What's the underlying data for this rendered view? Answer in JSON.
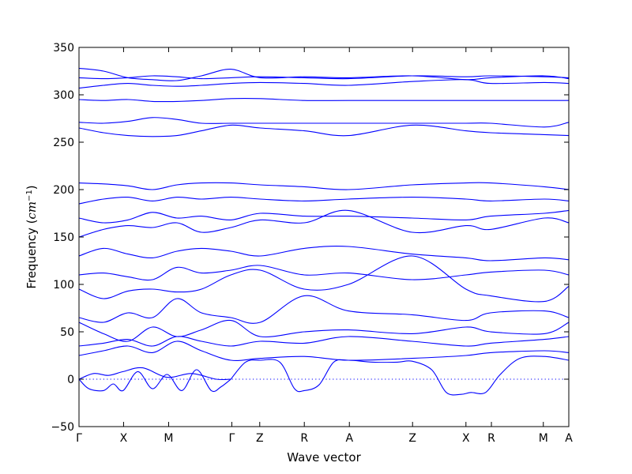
{
  "chart_data": {
    "type": "line",
    "title": "",
    "xlabel": "Wave vector",
    "ylabel_prefix": "Frequency (",
    "ylabel_unit": "cm",
    "ylabel_exp": "−1",
    "ylabel_suffix": ")",
    "ylim": [
      -50,
      350
    ],
    "yticks": [
      -50,
      0,
      50,
      100,
      150,
      200,
      250,
      300,
      350
    ],
    "ytick_labels": [
      "−50",
      "0",
      "50",
      "100",
      "150",
      "200",
      "250",
      "300",
      "350"
    ],
    "xlim": [
      0,
      1
    ],
    "high_symmetry_points": [
      {
        "label": "Γ",
        "x": 0.0
      },
      {
        "label": "X",
        "x": 0.091
      },
      {
        "label": "M",
        "x": 0.183
      },
      {
        "label": "Γ",
        "x": 0.312
      },
      {
        "label": "Z",
        "x": 0.369
      },
      {
        "label": "R",
        "x": 0.46
      },
      {
        "label": "A",
        "x": 0.552
      },
      {
        "label": "Z",
        "x": 0.681
      },
      {
        "label": "X",
        "x": 0.79
      },
      {
        "label": "R",
        "x": 0.842
      },
      {
        "label": "M",
        "x": 0.948
      },
      {
        "label": "A",
        "x": 1.0
      }
    ],
    "grid": false,
    "legend": "none",
    "line_color": "#0000ff",
    "zero_line_style": "dotted",
    "series": [
      {
        "x": [
          0,
          0.02,
          0.05,
          0.07,
          0.09,
          0.12,
          0.15,
          0.18,
          0.21,
          0.24,
          0.27,
          0.29,
          0.31
        ],
        "y": [
          0,
          -10,
          -12,
          -5,
          -12,
          8,
          -10,
          5,
          -12,
          10,
          -12,
          -8,
          0
        ]
      },
      {
        "x": [
          0,
          0.03,
          0.06,
          0.09,
          0.13,
          0.18,
          0.23,
          0.28,
          0.31
        ],
        "y": [
          0,
          6,
          4,
          8,
          12,
          2,
          6,
          0,
          0
        ]
      },
      {
        "x": [
          0.31,
          0.34,
          0.37,
          0.41,
          0.44,
          0.46,
          0.49,
          0.52,
          0.55,
          0.6,
          0.65,
          0.68,
          0.72,
          0.75,
          0.78,
          0.8,
          0.83,
          0.86,
          0.9,
          0.95,
          1.0
        ],
        "y": [
          0,
          18,
          20,
          18,
          -10,
          -12,
          -6,
          18,
          20,
          18,
          18,
          19,
          10,
          -14,
          -16,
          -14,
          -14,
          5,
          22,
          24,
          20
        ]
      },
      {
        "x": [
          0,
          0.05,
          0.1,
          0.15,
          0.2,
          0.25,
          0.31,
          0.37,
          0.46,
          0.55,
          0.68,
          0.79,
          0.84,
          0.95,
          1.0
        ],
        "y": [
          25,
          30,
          35,
          28,
          40,
          30,
          20,
          22,
          24,
          20,
          22,
          25,
          28,
          30,
          28
        ]
      },
      {
        "x": [
          0,
          0.05,
          0.1,
          0.15,
          0.2,
          0.25,
          0.31,
          0.37,
          0.46,
          0.55,
          0.68,
          0.79,
          0.84,
          0.95,
          1.0
        ],
        "y": [
          35,
          38,
          42,
          35,
          45,
          40,
          35,
          40,
          38,
          45,
          40,
          35,
          38,
          42,
          45
        ]
      },
      {
        "x": [
          0,
          0.05,
          0.1,
          0.15,
          0.2,
          0.25,
          0.31,
          0.37,
          0.46,
          0.55,
          0.68,
          0.79,
          0.84,
          0.95,
          1.0
        ],
        "y": [
          60,
          48,
          40,
          55,
          45,
          52,
          62,
          45,
          50,
          52,
          48,
          55,
          50,
          48,
          60
        ]
      },
      {
        "x": [
          0,
          0.05,
          0.1,
          0.15,
          0.2,
          0.25,
          0.31,
          0.37,
          0.46,
          0.55,
          0.68,
          0.79,
          0.84,
          0.95,
          1.0
        ],
        "y": [
          65,
          60,
          70,
          65,
          85,
          70,
          65,
          60,
          88,
          72,
          68,
          62,
          70,
          72,
          65
        ]
      },
      {
        "x": [
          0,
          0.05,
          0.1,
          0.15,
          0.2,
          0.25,
          0.31,
          0.37,
          0.46,
          0.55,
          0.68,
          0.79,
          0.84,
          0.95,
          1.0
        ],
        "y": [
          95,
          85,
          93,
          95,
          92,
          95,
          110,
          115,
          95,
          100,
          130,
          95,
          88,
          82,
          98
        ]
      },
      {
        "x": [
          0,
          0.05,
          0.1,
          0.15,
          0.2,
          0.25,
          0.31,
          0.37,
          0.46,
          0.55,
          0.68,
          0.79,
          0.84,
          0.95,
          1.0
        ],
        "y": [
          110,
          112,
          108,
          105,
          118,
          112,
          115,
          120,
          110,
          112,
          105,
          110,
          113,
          115,
          110
        ]
      },
      {
        "x": [
          0,
          0.05,
          0.1,
          0.15,
          0.2,
          0.25,
          0.31,
          0.37,
          0.46,
          0.55,
          0.68,
          0.79,
          0.84,
          0.95,
          1.0
        ],
        "y": [
          130,
          138,
          132,
          128,
          135,
          138,
          135,
          130,
          138,
          140,
          132,
          128,
          125,
          128,
          126
        ]
      },
      {
        "x": [
          0,
          0.05,
          0.1,
          0.15,
          0.2,
          0.25,
          0.31,
          0.37,
          0.46,
          0.55,
          0.68,
          0.79,
          0.84,
          0.95,
          1.0
        ],
        "y": [
          150,
          158,
          162,
          160,
          165,
          155,
          160,
          168,
          165,
          178,
          155,
          162,
          158,
          170,
          165
        ]
      },
      {
        "x": [
          0,
          0.05,
          0.1,
          0.15,
          0.2,
          0.25,
          0.31,
          0.37,
          0.46,
          0.55,
          0.68,
          0.79,
          0.84,
          0.95,
          1.0
        ],
        "y": [
          170,
          165,
          168,
          176,
          170,
          172,
          168,
          175,
          172,
          172,
          170,
          168,
          172,
          175,
          178
        ]
      },
      {
        "x": [
          0,
          0.05,
          0.1,
          0.15,
          0.2,
          0.25,
          0.31,
          0.37,
          0.46,
          0.55,
          0.68,
          0.79,
          0.84,
          0.95,
          1.0
        ],
        "y": [
          185,
          190,
          192,
          188,
          192,
          190,
          192,
          190,
          188,
          190,
          192,
          190,
          188,
          190,
          188
        ]
      },
      {
        "x": [
          0,
          0.05,
          0.1,
          0.15,
          0.2,
          0.25,
          0.31,
          0.37,
          0.46,
          0.55,
          0.68,
          0.79,
          0.84,
          0.95,
          1.0
        ],
        "y": [
          207,
          206,
          204,
          200,
          205,
          207,
          207,
          205,
          203,
          200,
          205,
          207,
          207,
          203,
          200
        ]
      },
      {
        "x": [
          0,
          0.05,
          0.1,
          0.15,
          0.2,
          0.25,
          0.31,
          0.37,
          0.46,
          0.55,
          0.68,
          0.79,
          0.84,
          0.95,
          1.0
        ],
        "y": [
          265,
          260,
          257,
          256,
          257,
          262,
          268,
          265,
          262,
          257,
          268,
          262,
          260,
          258,
          257
        ]
      },
      {
        "x": [
          0,
          0.05,
          0.1,
          0.15,
          0.2,
          0.25,
          0.31,
          0.37,
          0.46,
          0.55,
          0.68,
          0.79,
          0.84,
          0.95,
          1.0
        ],
        "y": [
          271,
          270,
          272,
          276,
          274,
          270,
          270,
          270,
          270,
          270,
          270,
          270,
          270,
          266,
          271
        ]
      },
      {
        "x": [
          0,
          0.05,
          0.1,
          0.15,
          0.2,
          0.25,
          0.31,
          0.37,
          0.46,
          0.55,
          0.68,
          0.79,
          0.84,
          0.95,
          1.0
        ],
        "y": [
          295,
          294,
          295,
          293,
          293,
          294,
          296,
          296,
          294,
          294,
          294,
          294,
          294,
          294,
          294
        ]
      },
      {
        "x": [
          0,
          0.05,
          0.1,
          0.15,
          0.2,
          0.25,
          0.31,
          0.37,
          0.46,
          0.55,
          0.68,
          0.79,
          0.84,
          0.95,
          1.0
        ],
        "y": [
          307,
          310,
          312,
          310,
          309,
          310,
          312,
          313,
          312,
          310,
          314,
          316,
          312,
          313,
          312
        ]
      },
      {
        "x": [
          0,
          0.05,
          0.1,
          0.15,
          0.2,
          0.25,
          0.31,
          0.37,
          0.46,
          0.55,
          0.68,
          0.79,
          0.84,
          0.95,
          1.0
        ],
        "y": [
          318,
          317,
          318,
          320,
          319,
          317,
          318,
          319,
          318,
          317,
          320,
          319,
          320,
          319,
          318
        ]
      },
      {
        "x": [
          0,
          0.05,
          0.1,
          0.15,
          0.2,
          0.25,
          0.31,
          0.37,
          0.46,
          0.55,
          0.68,
          0.79,
          0.84,
          0.95,
          1.0
        ],
        "y": [
          328,
          325,
          318,
          316,
          315,
          320,
          327,
          318,
          319,
          318,
          320,
          316,
          318,
          320,
          317
        ]
      }
    ]
  }
}
